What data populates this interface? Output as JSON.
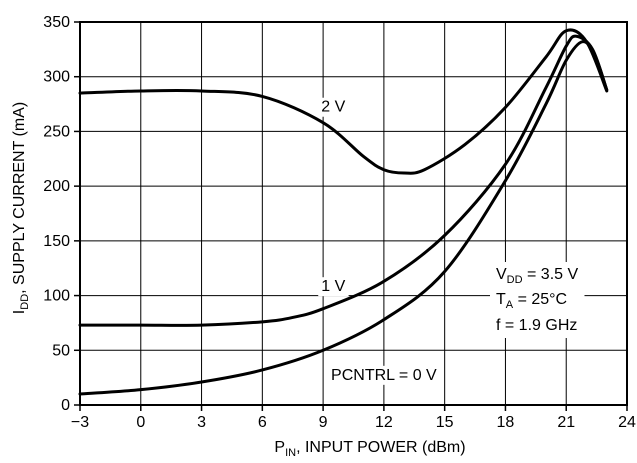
{
  "chart_data": {
    "type": "line",
    "xlabel": {
      "main": "P",
      "sub": "IN",
      "rest": ", INPUT POWER (dBm)"
    },
    "ylabel": {
      "main": "I",
      "sub": "DD",
      "rest": ", SUPPLY CURRENT (mA)"
    },
    "xlim": [
      -3,
      24
    ],
    "ylim": [
      0,
      350
    ],
    "xticks": [
      -3,
      0,
      3,
      6,
      9,
      12,
      15,
      18,
      21,
      24
    ],
    "xtick_labels": [
      "−3",
      "0",
      "3",
      "6",
      "9",
      "12",
      "15",
      "18",
      "21",
      "24"
    ],
    "yticks": [
      0,
      50,
      100,
      150,
      200,
      250,
      300,
      350
    ],
    "grid": true,
    "series": [
      {
        "name": "PCNTRL = 0 V",
        "x": [
          -3,
          0,
          3,
          6,
          9,
          12,
          15,
          18,
          20,
          21,
          21.8,
          22.4,
          23
        ],
        "y": [
          10,
          14,
          21,
          32,
          50,
          78,
          122,
          205,
          275,
          315,
          332,
          320,
          288
        ]
      },
      {
        "name": "1 V",
        "x": [
          -3,
          0,
          3,
          6,
          7.5,
          9,
          12,
          15,
          18,
          20,
          21,
          21.5,
          22.3,
          23
        ],
        "y": [
          73,
          73,
          73,
          76,
          80,
          88,
          113,
          155,
          220,
          290,
          328,
          337,
          325,
          288
        ]
      },
      {
        "name": "2 V",
        "x": [
          -3,
          0,
          3,
          6,
          9,
          11,
          12,
          13,
          14,
          16,
          18,
          20,
          21,
          22,
          23
        ],
        "y": [
          285,
          287,
          287,
          282,
          258,
          227,
          215,
          212,
          215,
          238,
          272,
          318,
          342,
          332,
          287
        ]
      }
    ],
    "curve_labels": [
      {
        "text": "2 V",
        "x": 9.5,
        "y": 268
      },
      {
        "text": "1 V",
        "x": 9.5,
        "y": 104
      },
      {
        "text": "PCNTRL = 0 V",
        "x": 12.0,
        "y": 23
      }
    ],
    "conditions": [
      {
        "main": "V",
        "sub": "DD",
        "rest": " = 3.5 V"
      },
      {
        "main": "T",
        "sub": "A",
        "rest": " = 25°C"
      },
      {
        "main": "",
        "sub": "",
        "rest": "f = 1.9 GHz"
      }
    ]
  }
}
